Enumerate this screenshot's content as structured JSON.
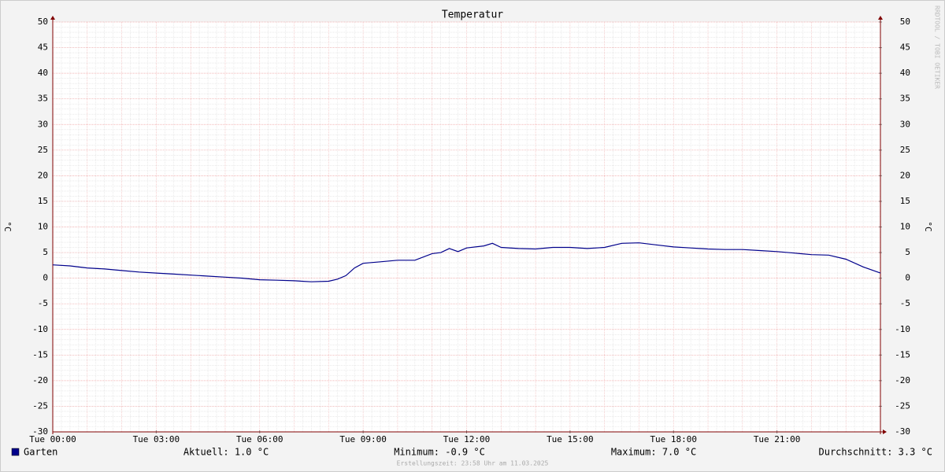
{
  "chart_data": {
    "type": "line",
    "title": "Temperatur",
    "ylabel": "°C",
    "y2label": "°C",
    "watermark": "RRDTOOL / TOBI OETIKER",
    "footer": "Erstellungszeit: 23:58 Uhr am 11.03.2025",
    "x": [
      0,
      0.5,
      1,
      1.5,
      2,
      2.5,
      3,
      3.5,
      4,
      4.5,
      5,
      5.5,
      6,
      6.5,
      7,
      7.5,
      8,
      8.25,
      8.5,
      8.75,
      9,
      9.5,
      10,
      10.5,
      11,
      11.25,
      11.5,
      11.75,
      12,
      12.5,
      12.75,
      13,
      13.5,
      14,
      14.5,
      15,
      15.5,
      16,
      16.5,
      17,
      17.5,
      18,
      18.5,
      19,
      19.5,
      20,
      20.5,
      21,
      21.5,
      22,
      22.5,
      23,
      23.5,
      24
    ],
    "series": [
      {
        "name": "Garten",
        "color": "#00008b",
        "values": [
          2.6,
          2.4,
          2.0,
          1.8,
          1.5,
          1.2,
          1.0,
          0.8,
          0.6,
          0.4,
          0.2,
          0.0,
          -0.3,
          -0.4,
          -0.5,
          -0.7,
          -0.6,
          -0.2,
          0.5,
          2.0,
          2.9,
          3.2,
          3.5,
          3.5,
          4.8,
          5.0,
          5.8,
          5.2,
          5.9,
          6.3,
          6.8,
          6.0,
          5.8,
          5.7,
          6.0,
          6.0,
          5.8,
          6.0,
          6.8,
          6.9,
          6.5,
          6.1,
          5.9,
          5.7,
          5.6,
          5.6,
          5.4,
          5.2,
          4.9,
          4.6,
          4.5,
          3.7,
          2.2,
          1.0
        ]
      }
    ],
    "stats": [
      "Aktuell: 1.0 °C",
      "Minimum: -0.9 °C",
      "Maximum: 7.0 °C",
      "Durchschnitt: 3.3 °C"
    ],
    "xlim": [
      0,
      24
    ],
    "xticks": [
      {
        "value": 0,
        "label": "Tue 00:00"
      },
      {
        "value": 3,
        "label": "Tue 03:00"
      },
      {
        "value": 6,
        "label": "Tue 06:00"
      },
      {
        "value": 9,
        "label": "Tue 09:00"
      },
      {
        "value": 12,
        "label": "Tue 12:00"
      },
      {
        "value": 15,
        "label": "Tue 15:00"
      },
      {
        "value": 18,
        "label": "Tue 18:00"
      },
      {
        "value": 21,
        "label": "Tue 21:00"
      }
    ],
    "ylim": [
      -30,
      50
    ],
    "yticks": [
      50,
      45,
      40,
      35,
      30,
      25,
      20,
      15,
      10,
      5,
      0,
      -5,
      -10,
      -15,
      -20,
      -25,
      -30
    ],
    "y2lim": [
      -30,
      50
    ],
    "y2ticks": [
      50,
      45,
      40,
      35,
      30,
      25,
      20,
      15,
      10,
      5,
      0,
      -5,
      -10,
      -15,
      -20,
      -25,
      -30
    ],
    "grid": true
  }
}
